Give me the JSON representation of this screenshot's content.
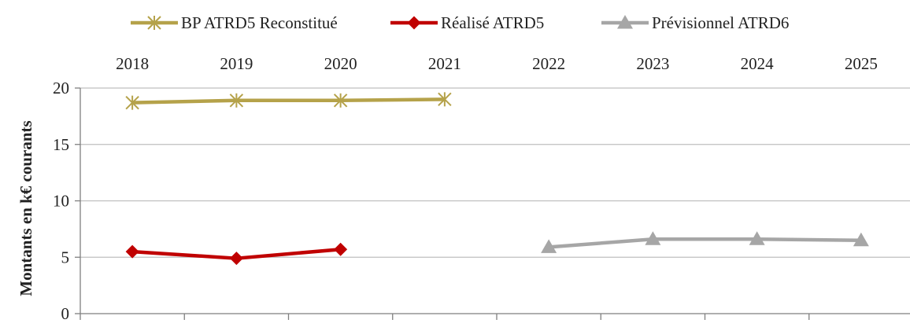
{
  "chart_data": {
    "type": "line",
    "categories": [
      "2018",
      "2019",
      "2020",
      "2021",
      "2022",
      "2023",
      "2024",
      "2025"
    ],
    "series": [
      {
        "name": "BP ATRD5 Reconstitué",
        "color": "#B5A24A",
        "marker": "star",
        "values": [
          18.7,
          18.9,
          18.9,
          19.0,
          null,
          null,
          null,
          null
        ]
      },
      {
        "name": "Réalisé ATRD5",
        "color": "#C00000",
        "marker": "diamond",
        "values": [
          5.5,
          4.9,
          5.7,
          null,
          null,
          null,
          null,
          null
        ]
      },
      {
        "name": "Prévisionnel ATRD6",
        "color": "#A6A6A6",
        "marker": "triangle",
        "values": [
          null,
          null,
          null,
          null,
          5.9,
          6.6,
          6.6,
          6.5
        ]
      }
    ],
    "ylabel": "Montants en k€ courants",
    "ylim": [
      0,
      20
    ],
    "yticks": [
      0,
      5,
      10,
      15,
      20
    ],
    "grid": true,
    "legend_position": "top",
    "xaxis_position": "top"
  }
}
